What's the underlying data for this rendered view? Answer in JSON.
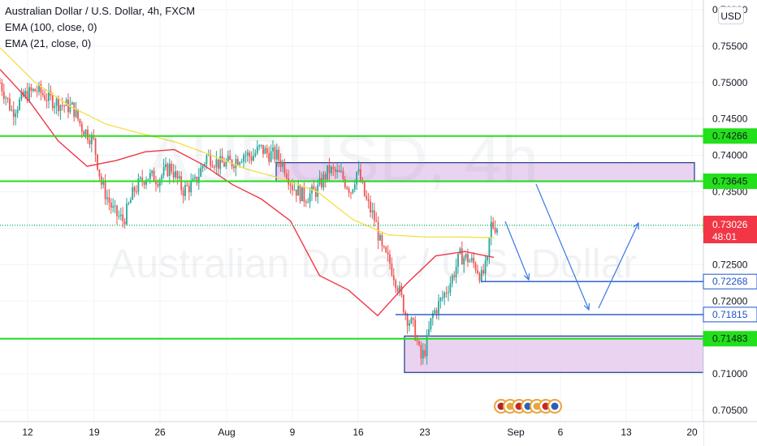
{
  "legend": {
    "title": "Australian Dollar / U.S. Dollar, 4h, FXCM",
    "ema1": "EMA (100, close, 0)",
    "ema2": "EMA (21, close, 0)"
  },
  "currency_badge": "USD",
  "watermark": {
    "symbol": "AUDUSD, 4h",
    "description": "Australian Dollar / U.S. Dollar"
  },
  "price_scale_labels": [
    "0.76000",
    "0.75500",
    "0.75000",
    "0.74500",
    "0.74000",
    "0.73500",
    "0.73000",
    "0.72500",
    "0.72000",
    "0.71500",
    "0.71000",
    "0.70500"
  ],
  "price_tags": [
    {
      "value": "0.74266",
      "kind": "support"
    },
    {
      "value": "0.73645",
      "kind": "support"
    },
    {
      "value": "0.73044",
      "kind": "level"
    },
    {
      "value": "0.72268",
      "kind": "blue"
    },
    {
      "value": "0.71815",
      "kind": "blue"
    },
    {
      "value": "0.71483",
      "kind": "support"
    }
  ],
  "current_price": {
    "value": "0.73026",
    "countdown": "48:01"
  },
  "time_axis_labels": [
    "12",
    "19",
    "26",
    "Aug",
    "9",
    "16",
    "23",
    "Sep",
    "6",
    "13",
    "20"
  ],
  "colors": {
    "up": "#26a69a",
    "down": "#ef5350",
    "ema100": "#f5e050",
    "ema21": "#f23645",
    "green_line": "#22e01a",
    "blue_line": "#1e53c9",
    "zone_fill": "#e5cbef",
    "arrow": "#3b78e7"
  },
  "chart_data": {
    "type": "candlestick",
    "title": "Australian Dollar / U.S. Dollar, 4h, FXCM",
    "ylim": [
      0.703,
      0.7602
    ],
    "x_ticks": [
      "12",
      "19",
      "26",
      "Aug",
      "9",
      "16",
      "23",
      "Sep",
      "6",
      "13",
      "20"
    ],
    "series": [
      {
        "name": "EMA (100, close, 0)",
        "values": [
          [
            0.7548,
            0.755
          ],
          [
            0.75,
            0.7527
          ],
          [
            0.7467,
            0.7503
          ],
          [
            0.7443,
            0.7475
          ],
          [
            0.743,
            0.7447
          ],
          [
            0.7418,
            0.7423
          ],
          [
            0.74,
            0.7405
          ],
          [
            0.7381,
            0.739
          ],
          [
            0.7368,
            0.7375
          ],
          [
            0.735,
            0.7356
          ],
          [
            0.7312,
            0.7324
          ],
          [
            0.7291,
            0.7302
          ],
          [
            0.7288,
            0.729
          ],
          [
            0.7288,
            0.7287
          ]
        ]
      },
      {
        "name": "EMA (21, close, 0)",
        "values": [
          [
            0.7518,
            0.753
          ],
          [
            0.7475,
            0.75
          ],
          [
            0.742,
            0.7447
          ],
          [
            0.7385,
            0.74
          ],
          [
            0.7393,
            0.739
          ],
          [
            0.7405,
            0.74
          ],
          [
            0.7408,
            0.741
          ],
          [
            0.7387,
            0.74
          ],
          [
            0.736,
            0.737
          ],
          [
            0.734,
            0.735
          ],
          [
            0.731,
            0.7326
          ],
          [
            0.7235,
            0.727
          ],
          [
            0.7215,
            0.7225
          ],
          [
            0.718,
            0.719
          ],
          [
            0.7224,
            0.72
          ],
          [
            0.7262,
            0.7245
          ],
          [
            0.7268,
            0.726
          ]
        ]
      }
    ],
    "horizontal_levels": [
      0.74266,
      0.73645,
      0.73044,
      0.72268,
      0.71815,
      0.71483
    ],
    "zones": [
      {
        "from": 0.7364,
        "to": 0.739
      },
      {
        "from": 0.7102,
        "to": 0.7152
      }
    ]
  }
}
